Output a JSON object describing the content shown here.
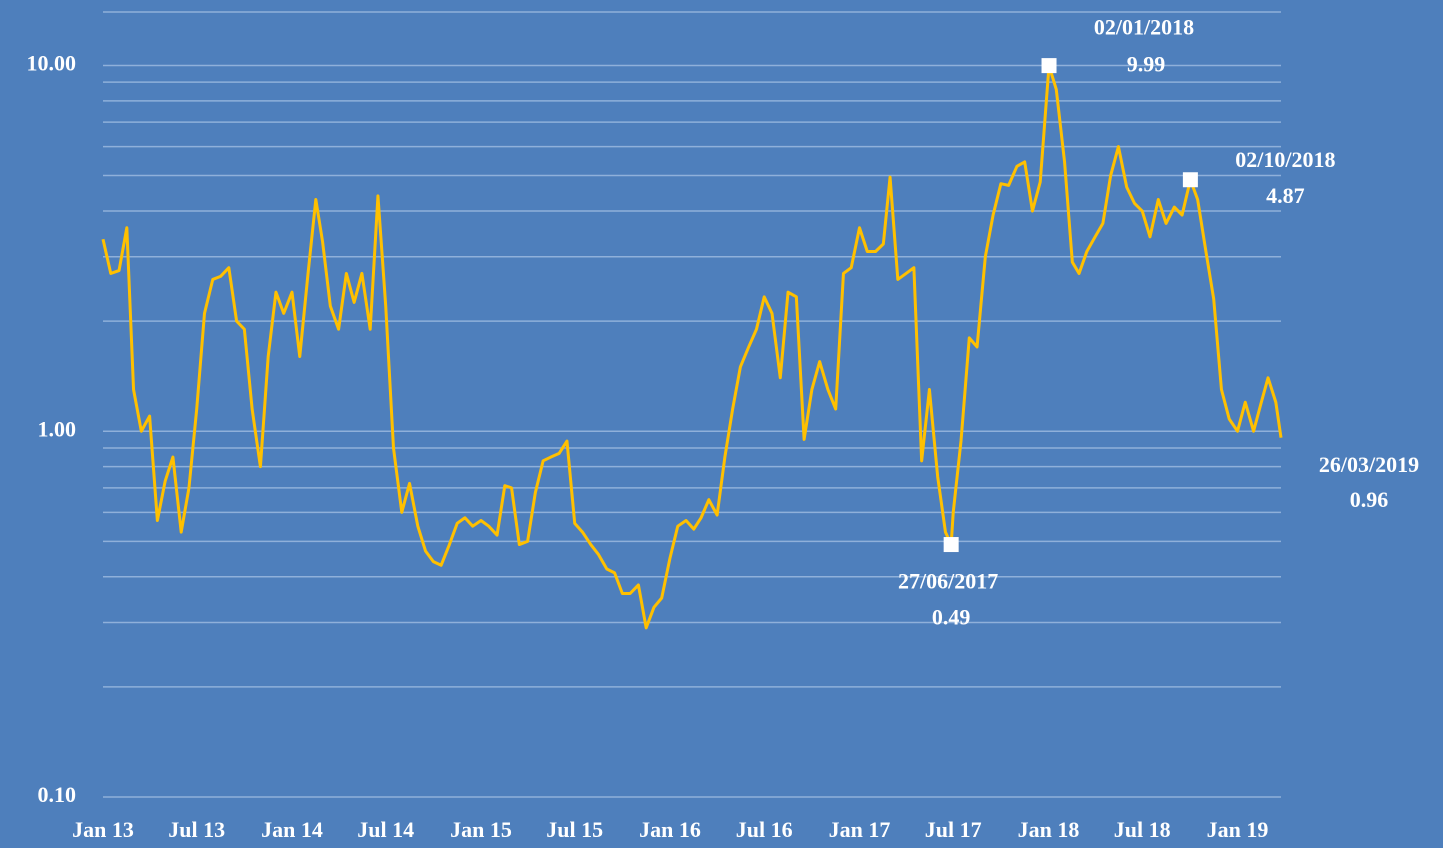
{
  "chart_data": {
    "type": "line",
    "log_y": true,
    "grid": true,
    "color": "#ffc000",
    "xlim": [
      "2013-01",
      "2019-03-26"
    ],
    "xticks": [
      {
        "value": "2013-01",
        "label": "Jan 13"
      },
      {
        "value": "2013-07",
        "label": "Jul 13"
      },
      {
        "value": "2014-01",
        "label": "Jan 14"
      },
      {
        "value": "2014-07",
        "label": "Jul 14"
      },
      {
        "value": "2015-01",
        "label": "Jan 15"
      },
      {
        "value": "2015-07",
        "label": "Jul 15"
      },
      {
        "value": "2016-01",
        "label": "Jan 16"
      },
      {
        "value": "2016-07",
        "label": "Jul 16"
      },
      {
        "value": "2017-01",
        "label": "Jan 17"
      },
      {
        "value": "2017-07",
        "label": "Jul 17"
      },
      {
        "value": "2018-01",
        "label": "Jan 18"
      },
      {
        "value": "2018-07",
        "label": "Jul 18"
      },
      {
        "value": "2019-01",
        "label": "Jan 19"
      }
    ],
    "ylim": [
      0.1,
      14
    ],
    "yticks": [
      {
        "value": 0.1,
        "label": "0.10"
      },
      {
        "value": 1,
        "label": "1.00"
      },
      {
        "value": 10,
        "label": "10.00"
      }
    ],
    "minor_gridlines": [
      0.2,
      0.3,
      0.4,
      0.5,
      0.6,
      0.7,
      0.8,
      0.9,
      2,
      3,
      4,
      5,
      6,
      7,
      8,
      9
    ],
    "x": [
      "2013-01-01",
      "2013-01-16",
      "2013-02-01",
      "2013-02-16",
      "2013-03-01",
      "2013-03-16",
      "2013-04-01",
      "2013-04-16",
      "2013-05-01",
      "2013-05-16",
      "2013-06-01",
      "2013-06-16",
      "2013-07-01",
      "2013-07-16",
      "2013-08-01",
      "2013-08-16",
      "2013-09-01",
      "2013-09-16",
      "2013-10-01",
      "2013-10-16",
      "2013-11-01",
      "2013-11-16",
      "2013-12-01",
      "2013-12-16",
      "2014-01-01",
      "2014-01-16",
      "2014-02-01",
      "2014-02-16",
      "2014-03-01",
      "2014-03-16",
      "2014-04-01",
      "2014-04-16",
      "2014-05-01",
      "2014-05-16",
      "2014-06-01",
      "2014-06-16",
      "2014-07-01",
      "2014-07-16",
      "2014-08-01",
      "2014-08-16",
      "2014-09-01",
      "2014-09-16",
      "2014-10-01",
      "2014-10-16",
      "2014-11-01",
      "2014-11-16",
      "2014-12-01",
      "2014-12-16",
      "2015-01-01",
      "2015-01-16",
      "2015-02-01",
      "2015-02-16",
      "2015-03-01",
      "2015-03-16",
      "2015-04-01",
      "2015-04-16",
      "2015-05-01",
      "2015-05-16",
      "2015-06-01",
      "2015-06-16",
      "2015-07-01",
      "2015-07-16",
      "2015-08-01",
      "2015-08-16",
      "2015-09-01",
      "2015-09-16",
      "2015-10-01",
      "2015-10-16",
      "2015-11-01",
      "2015-11-16",
      "2015-12-01",
      "2015-12-16",
      "2016-01-01",
      "2016-01-16",
      "2016-02-01",
      "2016-02-16",
      "2016-03-01",
      "2016-03-16",
      "2016-04-01",
      "2016-04-16",
      "2016-05-01",
      "2016-05-16",
      "2016-06-01",
      "2016-06-16",
      "2016-07-01",
      "2016-07-16",
      "2016-08-01",
      "2016-08-16",
      "2016-09-01",
      "2016-09-16",
      "2016-10-01",
      "2016-10-16",
      "2016-11-01",
      "2016-11-16",
      "2016-12-01",
      "2016-12-16",
      "2017-01-01",
      "2017-01-16",
      "2017-02-01",
      "2017-02-16",
      "2017-03-01",
      "2017-03-16",
      "2017-04-01",
      "2017-04-16",
      "2017-05-01",
      "2017-05-16",
      "2017-06-01",
      "2017-06-16",
      "2017-06-27",
      "2017-07-01",
      "2017-07-16",
      "2017-08-01",
      "2017-08-16",
      "2017-09-01",
      "2017-09-16",
      "2017-10-01",
      "2017-10-16",
      "2017-11-01",
      "2017-11-16",
      "2017-12-01",
      "2017-12-16",
      "2018-01-02",
      "2018-01-16",
      "2018-02-01",
      "2018-02-16",
      "2018-03-01",
      "2018-03-16",
      "2018-04-01",
      "2018-04-16",
      "2018-05-01",
      "2018-05-16",
      "2018-06-01",
      "2018-06-16",
      "2018-07-01",
      "2018-07-16",
      "2018-08-01",
      "2018-08-16",
      "2018-09-01",
      "2018-09-16",
      "2018-10-02",
      "2018-10-16",
      "2018-11-01",
      "2018-11-16",
      "2018-12-01",
      "2018-12-16",
      "2019-01-01",
      "2019-01-16",
      "2019-02-01",
      "2019-02-16",
      "2019-03-01",
      "2019-03-16",
      "2019-03-26"
    ],
    "values": [
      3.35,
      2.7,
      2.75,
      3.6,
      1.3,
      1.0,
      1.1,
      0.57,
      0.73,
      0.85,
      0.53,
      0.7,
      1.15,
      2.1,
      2.6,
      2.65,
      2.8,
      2.0,
      1.9,
      1.15,
      0.8,
      1.6,
      2.4,
      2.1,
      2.4,
      1.6,
      2.7,
      4.3,
      3.3,
      2.2,
      1.9,
      2.7,
      2.25,
      2.7,
      1.9,
      4.4,
      2.2,
      0.9,
      0.6,
      0.72,
      0.55,
      0.47,
      0.44,
      0.43,
      0.49,
      0.56,
      0.58,
      0.55,
      0.57,
      0.55,
      0.52,
      0.71,
      0.7,
      0.49,
      0.5,
      0.68,
      0.83,
      0.85,
      0.87,
      0.94,
      0.56,
      0.53,
      0.49,
      0.46,
      0.42,
      0.41,
      0.36,
      0.36,
      0.38,
      0.29,
      0.33,
      0.35,
      0.45,
      0.55,
      0.57,
      0.54,
      0.58,
      0.65,
      0.59,
      0.85,
      1.15,
      1.5,
      1.7,
      1.9,
      2.33,
      2.1,
      1.4,
      2.4,
      2.33,
      0.95,
      1.3,
      1.55,
      1.3,
      1.15,
      2.7,
      2.8,
      3.6,
      3.1,
      3.1,
      3.25,
      4.95,
      2.6,
      2.7,
      2.8,
      0.83,
      1.3,
      0.75,
      0.53,
      0.49,
      0.6,
      0.94,
      1.8,
      1.7,
      3.0,
      3.9,
      4.75,
      4.7,
      5.3,
      5.45,
      4.0,
      4.8,
      9.99,
      8.6,
      5.45,
      2.9,
      2.7,
      3.1,
      3.4,
      3.7,
      5.0,
      6.0,
      4.65,
      4.2,
      4.0,
      3.4,
      4.3,
      3.7,
      4.1,
      3.9,
      4.87,
      4.3,
      3.1,
      2.3,
      1.3,
      1.08,
      1.0,
      1.2,
      1.0,
      1.2,
      1.4,
      1.2,
      0.96
    ],
    "annotations": [
      {
        "date": "02/01/2018",
        "value": 9.99,
        "marker": true
      },
      {
        "date": "02/10/2018",
        "value": 4.87,
        "marker": true
      },
      {
        "date": "27/06/2017",
        "value": 0.49,
        "marker": true
      },
      {
        "date": "26/03/2019",
        "value": 0.96,
        "marker": false
      }
    ]
  }
}
